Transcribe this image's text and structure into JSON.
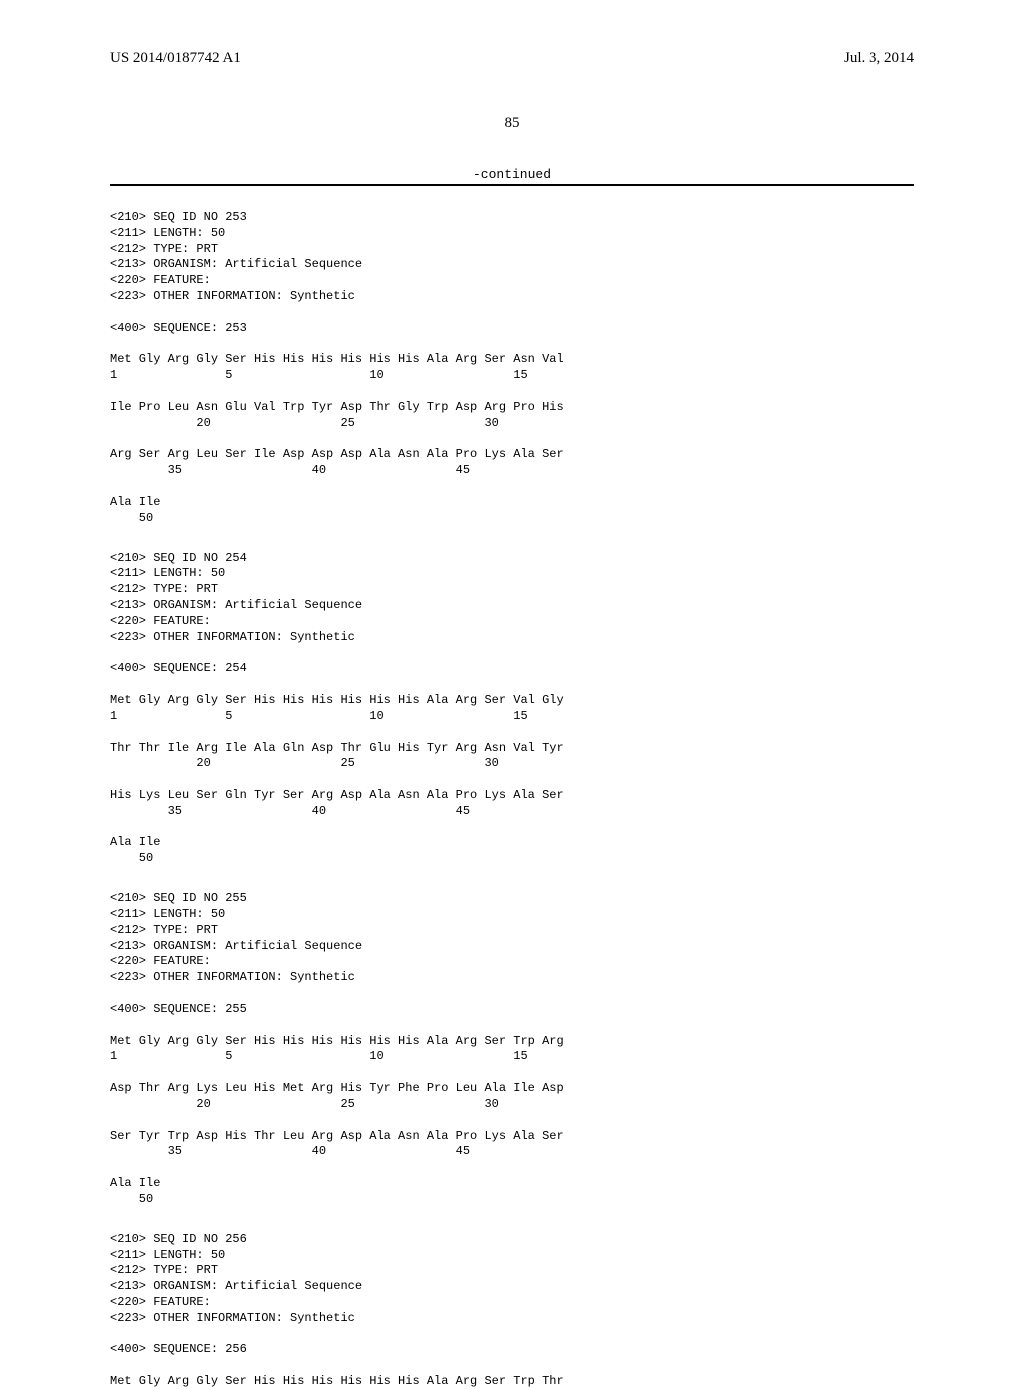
{
  "header": {
    "pub_number": "US 2014/0187742 A1",
    "pub_date": "Jul. 3, 2014"
  },
  "page_number": "85",
  "continued_label": "-continued",
  "sequences": [
    {
      "meta": [
        "<210> SEQ ID NO 253",
        "<211> LENGTH: 50",
        "<212> TYPE: PRT",
        "<213> ORGANISM: Artificial Sequence",
        "<220> FEATURE:",
        "<223> OTHER INFORMATION: Synthetic"
      ],
      "seq_header": "<400> SEQUENCE: 253",
      "rows": [
        {
          "aa": "Met Gly Arg Gly Ser His His His His His His Ala Arg Ser Asn Val",
          "nm": "1               5                   10                  15"
        },
        {
          "aa": "Ile Pro Leu Asn Glu Val Trp Tyr Asp Thr Gly Trp Asp Arg Pro His",
          "nm": "            20                  25                  30"
        },
        {
          "aa": "Arg Ser Arg Leu Ser Ile Asp Asp Asp Ala Asn Ala Pro Lys Ala Ser",
          "nm": "        35                  40                  45"
        },
        {
          "aa": "Ala Ile",
          "nm": "    50"
        }
      ]
    },
    {
      "meta": [
        "<210> SEQ ID NO 254",
        "<211> LENGTH: 50",
        "<212> TYPE: PRT",
        "<213> ORGANISM: Artificial Sequence",
        "<220> FEATURE:",
        "<223> OTHER INFORMATION: Synthetic"
      ],
      "seq_header": "<400> SEQUENCE: 254",
      "rows": [
        {
          "aa": "Met Gly Arg Gly Ser His His His His His His Ala Arg Ser Val Gly",
          "nm": "1               5                   10                  15"
        },
        {
          "aa": "Thr Thr Ile Arg Ile Ala Gln Asp Thr Glu His Tyr Arg Asn Val Tyr",
          "nm": "            20                  25                  30"
        },
        {
          "aa": "His Lys Leu Ser Gln Tyr Ser Arg Asp Ala Asn Ala Pro Lys Ala Ser",
          "nm": "        35                  40                  45"
        },
        {
          "aa": "Ala Ile",
          "nm": "    50"
        }
      ]
    },
    {
      "meta": [
        "<210> SEQ ID NO 255",
        "<211> LENGTH: 50",
        "<212> TYPE: PRT",
        "<213> ORGANISM: Artificial Sequence",
        "<220> FEATURE:",
        "<223> OTHER INFORMATION: Synthetic"
      ],
      "seq_header": "<400> SEQUENCE: 255",
      "rows": [
        {
          "aa": "Met Gly Arg Gly Ser His His His His His His Ala Arg Ser Trp Arg",
          "nm": "1               5                   10                  15"
        },
        {
          "aa": "Asp Thr Arg Lys Leu His Met Arg His Tyr Phe Pro Leu Ala Ile Asp",
          "nm": "            20                  25                  30"
        },
        {
          "aa": "Ser Tyr Trp Asp His Thr Leu Arg Asp Ala Asn Ala Pro Lys Ala Ser",
          "nm": "        35                  40                  45"
        },
        {
          "aa": "Ala Ile",
          "nm": "    50"
        }
      ]
    },
    {
      "meta": [
        "<210> SEQ ID NO 256",
        "<211> LENGTH: 50",
        "<212> TYPE: PRT",
        "<213> ORGANISM: Artificial Sequence",
        "<220> FEATURE:",
        "<223> OTHER INFORMATION: Synthetic"
      ],
      "seq_header": "<400> SEQUENCE: 256",
      "rows": [
        {
          "aa": "Met Gly Arg Gly Ser His His His His His His Ala Arg Ser Trp Thr",
          "nm": ""
        }
      ]
    }
  ]
}
